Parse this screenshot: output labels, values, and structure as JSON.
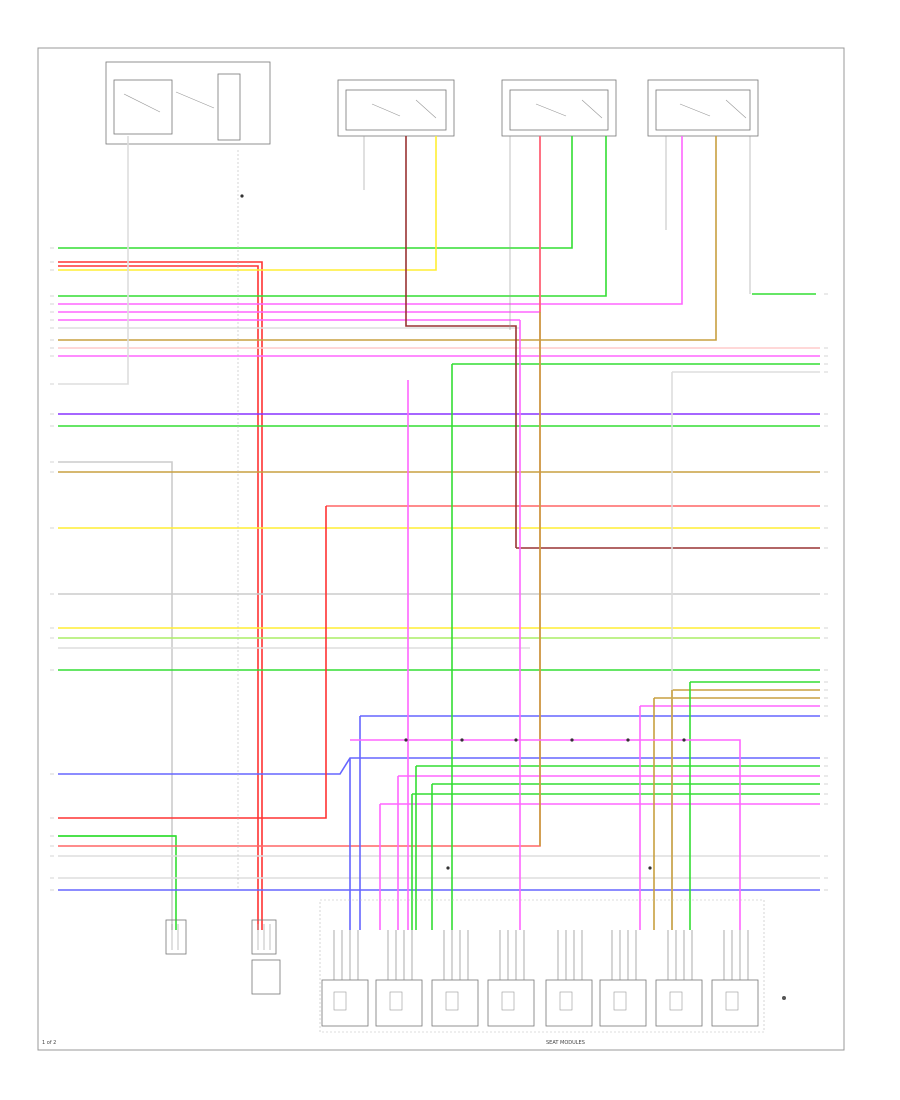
{
  "page_number": "1 of 2",
  "colors": {
    "green": "#33dd33",
    "red": "#ff3333",
    "yellow": "#ffee33",
    "pink": "#ff66ff",
    "blue": "#6666ff",
    "violet": "#8833ff",
    "dark_red": "#993333",
    "gray": "#aaaaaa",
    "orange_brown": "#c8a040"
  },
  "footer_label": "SEAT MODULES"
}
